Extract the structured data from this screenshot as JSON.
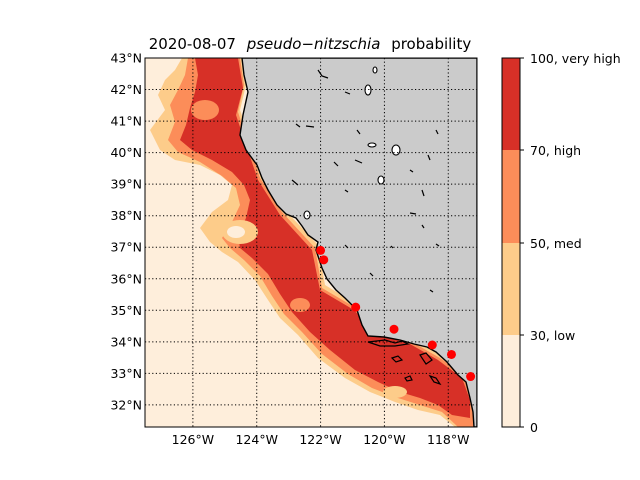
{
  "title": {
    "date": "2020-08-07",
    "italic": "pseudo−nitzschia",
    "suffix": "probability"
  },
  "map": {
    "lon_range": [
      -127.5,
      -117.1
    ],
    "lat_range": [
      31.3,
      43.0
    ],
    "gridlines": "dotted",
    "land_color": "#cbcbcb",
    "coastline_color": "#000000",
    "lat_ticks": [
      "43°N",
      "42°N",
      "41°N",
      "40°N",
      "39°N",
      "38°N",
      "37°N",
      "36°N",
      "35°N",
      "34°N",
      "33°N",
      "32°N"
    ],
    "lon_ticks": [
      "126°W",
      "124°W",
      "122°W",
      "120°W",
      "118°W"
    ]
  },
  "legend": {
    "labels": [
      "100, very high",
      "70, high",
      "50, med",
      "30, low",
      "0"
    ],
    "colors": {
      "very_high": "#d73027",
      "high": "#fc8d59",
      "med": "#fdcc8a",
      "low": "#feeedb"
    }
  },
  "sample_stations": [
    {
      "lon": -122.0,
      "lat": 36.9
    },
    {
      "lon": -121.9,
      "lat": 36.6
    },
    {
      "lon": -120.9,
      "lat": 35.1
    },
    {
      "lon": -119.7,
      "lat": 34.4
    },
    {
      "lon": -118.5,
      "lat": 33.9
    },
    {
      "lon": -117.9,
      "lat": 33.6
    },
    {
      "lon": -117.3,
      "lat": 32.9
    }
  ],
  "station_color": "#ff0000"
}
